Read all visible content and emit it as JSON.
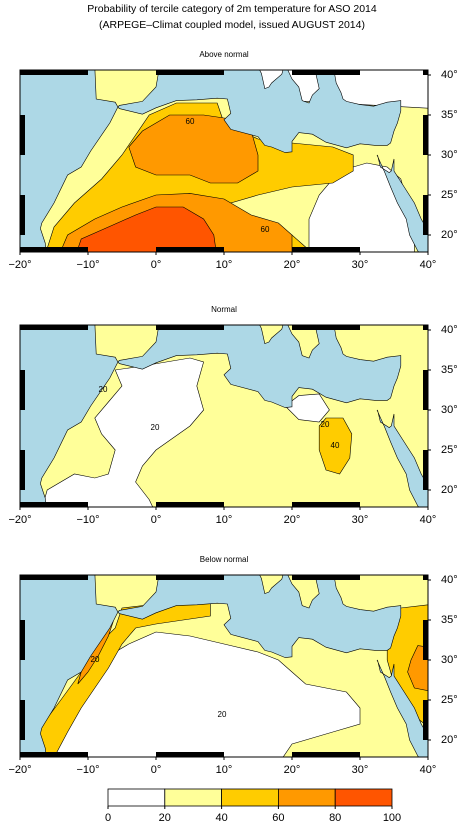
{
  "header": {
    "title": "Probability of tercile category of 2m temperature for ASO 2014",
    "subtitle": "(ARPEGE–Climat coupled model, issued AUGUST 2014)"
  },
  "map": {
    "xlim": [
      -20,
      40
    ],
    "ylim": [
      17.875,
      40.625
    ],
    "lon_ticks": [
      {
        "value": -20,
        "label": "−20°"
      },
      {
        "value": -10,
        "label": "−10°"
      },
      {
        "value": 0,
        "label": "0°"
      },
      {
        "value": 10,
        "label": "10°"
      },
      {
        "value": 20,
        "label": "20°"
      },
      {
        "value": 30,
        "label": "30°"
      },
      {
        "value": 40,
        "label": "40°"
      }
    ],
    "lat_ticks": [
      {
        "value": 20,
        "label": "20°"
      },
      {
        "value": 25,
        "label": "25°"
      },
      {
        "value": 30,
        "label": "30°"
      },
      {
        "value": 35,
        "label": "35°"
      },
      {
        "value": 40,
        "label": "40°"
      }
    ],
    "sea_color": "#add8e6"
  },
  "panels": [
    {
      "title": "Above normal",
      "contour_labels": [
        60,
        60
      ]
    },
    {
      "title": "Normal",
      "contour_labels": [
        20,
        20,
        20,
        40
      ]
    },
    {
      "title": "Below normal",
      "contour_labels": [
        20,
        20
      ]
    }
  ],
  "colorbar": {
    "levels": [
      0,
      20,
      40,
      60,
      80,
      100
    ],
    "colors": [
      "#ffffff",
      "#ffff99",
      "#ffcc00",
      "#ff9900",
      "#ff5500"
    ]
  }
}
